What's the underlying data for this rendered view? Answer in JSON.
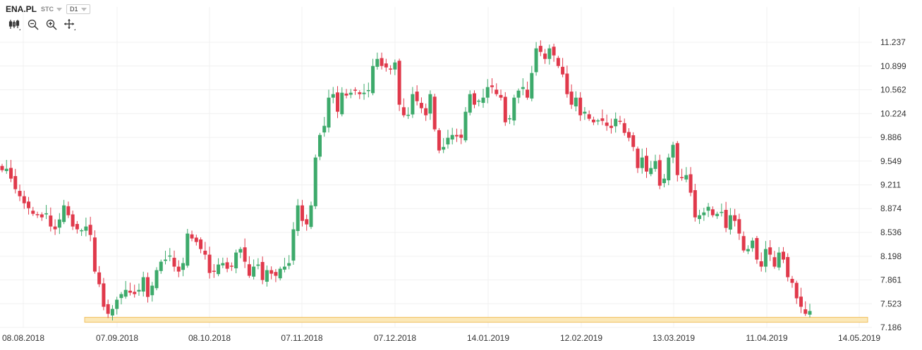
{
  "header": {
    "symbol": "ENA.PL",
    "market": "STC",
    "interval": "D1"
  },
  "toolbar_icons": [
    "candlestick-icon",
    "zoom-out-icon",
    "zoom-in-icon",
    "crosshair-icon"
  ],
  "colors": {
    "up": "#3daa6b",
    "down": "#e0394b",
    "highlight_fill": "#fbe8b8",
    "highlight_stroke": "#f0c060"
  },
  "chart_data": {
    "type": "candlestick",
    "ylim": [
      7.186,
      11.5
    ],
    "y_ticks": [
      "11.237",
      "10.899",
      "10.562",
      "10.224",
      "9.886",
      "9.549",
      "9.211",
      "8.874",
      "8.536",
      "8.198",
      "7.861",
      "7.523",
      "7.186"
    ],
    "x_ticks": [
      "08.08.2018",
      "07.09.2018",
      "08.10.2018",
      "07.11.2018",
      "07.12.2018",
      "14.01.2019",
      "12.02.2019",
      "13.03.2019",
      "11.04.2019",
      "14.05.2019"
    ],
    "highlight_band": [
      7.26,
      7.33
    ],
    "closes": [
      9.42,
      9.44,
      9.3,
      9.15,
      9.05,
      8.95,
      8.88,
      8.8,
      8.78,
      8.75,
      8.8,
      8.62,
      8.58,
      8.72,
      8.92,
      8.78,
      8.62,
      8.58,
      8.56,
      8.62,
      8.5,
      7.98,
      7.8,
      7.48,
      7.38,
      7.45,
      7.58,
      7.66,
      7.72,
      7.68,
      7.66,
      7.72,
      7.9,
      7.62,
      7.78,
      8.0,
      8.12,
      8.15,
      8.2,
      8.05,
      7.98,
      8.1,
      8.52,
      8.45,
      8.4,
      8.3,
      8.22,
      7.96,
      7.98,
      8.08,
      8.1,
      8.02,
      8.05,
      8.25,
      8.3,
      8.12,
      7.92,
      8.05,
      8.08,
      7.86,
      8.0,
      7.95,
      7.92,
      8.02,
      8.05,
      8.1,
      8.58,
      8.92,
      8.7,
      8.65,
      8.92,
      9.6,
      9.92,
      10.05,
      10.45,
      10.5,
      10.25,
      10.52,
      10.48,
      10.52,
      10.55,
      10.5,
      10.52,
      10.55,
      10.9,
      11.0,
      10.9,
      10.88,
      10.85,
      10.95,
      10.35,
      10.2,
      10.2,
      10.5,
      10.4,
      10.3,
      10.2,
      10.5,
      10.0,
      9.7,
      9.75,
      9.88,
      9.92,
      9.9,
      9.88,
      10.25,
      10.5,
      10.35,
      10.4,
      10.45,
      10.6,
      10.6,
      10.5,
      10.45,
      10.1,
      10.15,
      10.45,
      10.55,
      10.6,
      10.45,
      10.8,
      11.15,
      11.1,
      11.0,
      11.15,
      11.05,
      10.9,
      10.78,
      10.5,
      10.35,
      10.45,
      10.2,
      10.25,
      10.15,
      10.1,
      10.12,
      10.12,
      10.05,
      10.02,
      10.15,
      10.1,
      9.95,
      9.88,
      9.75,
      9.45,
      9.6,
      9.4,
      9.45,
      9.55,
      9.2,
      9.3,
      9.6,
      9.78,
      9.35,
      9.3,
      9.35,
      9.1,
      8.75,
      8.78,
      8.82,
      8.9,
      8.78,
      8.8,
      8.82,
      8.6,
      8.78,
      8.7,
      8.52,
      8.28,
      8.3,
      8.42,
      8.15,
      8.05,
      8.3,
      8.22,
      8.05,
      8.25,
      8.15,
      7.9,
      7.82,
      7.6,
      7.48,
      7.38,
      7.42
    ]
  }
}
